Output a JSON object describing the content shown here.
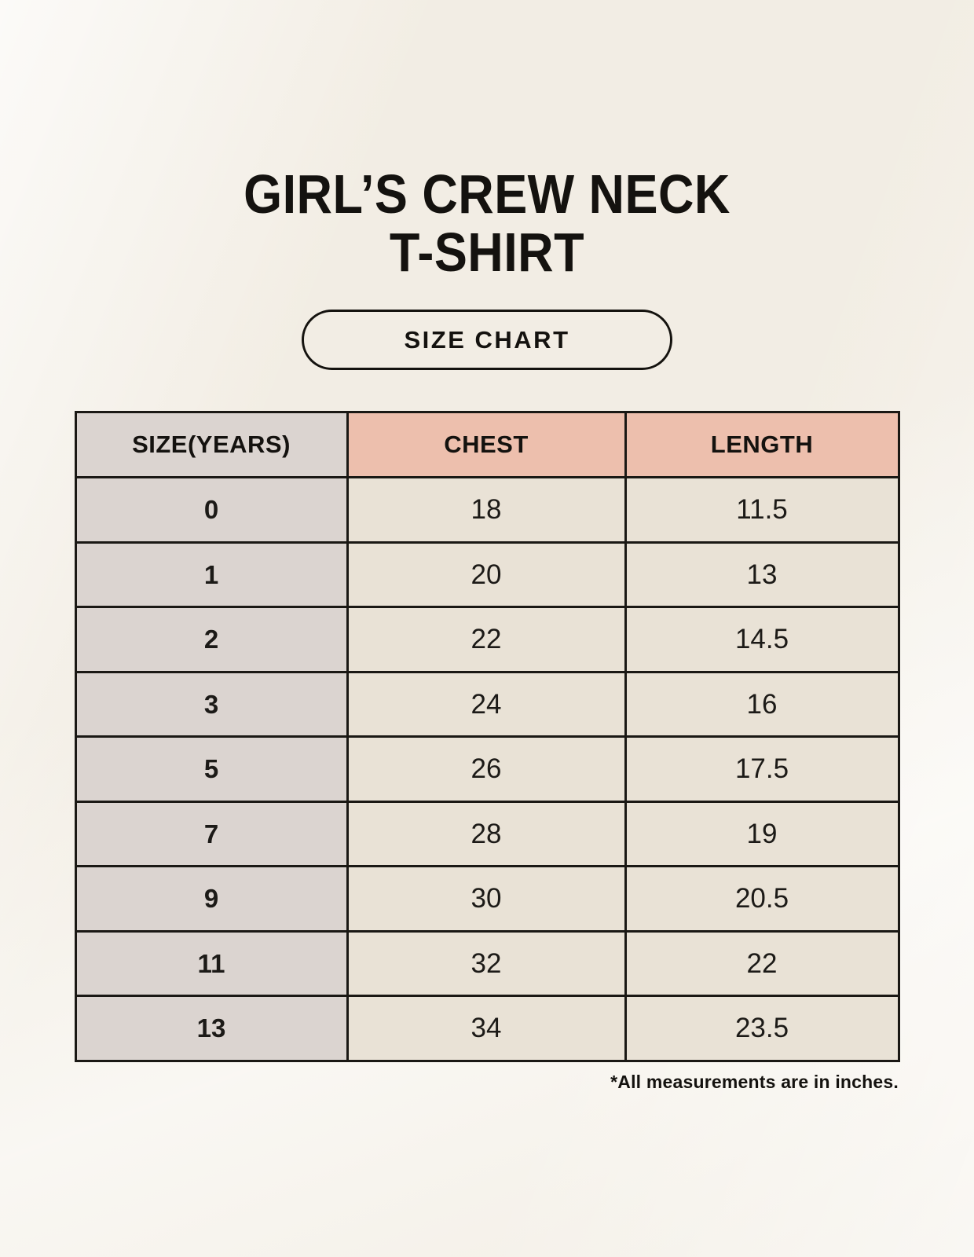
{
  "header": {
    "title_line1": "GIRL’S CREW NECK",
    "title_line2": "T-SHIRT",
    "badge_label": "SIZE CHART"
  },
  "footnote": "*All measurements are in inches.",
  "colors": {
    "page_background": "#f5f1e9",
    "header_size_bg": "#dbd4d0",
    "header_measurement_bg": "#edbfad",
    "size_column_bg": "#dbd4d0",
    "value_cell_bg": "#e9e2d6",
    "table_border": "#1a1814",
    "text": "#1c1a17"
  },
  "chart_data": {
    "type": "table",
    "title": "GIRL’S CREW NECK T-SHIRT — SIZE CHART",
    "columns": [
      "SIZE(YEARS)",
      "CHEST",
      "LENGTH"
    ],
    "rows": [
      [
        "0",
        "18",
        "11.5"
      ],
      [
        "1",
        "20",
        "13"
      ],
      [
        "2",
        "22",
        "14.5"
      ],
      [
        "3",
        "24",
        "16"
      ],
      [
        "5",
        "26",
        "17.5"
      ],
      [
        "7",
        "28",
        "19"
      ],
      [
        "9",
        "30",
        "20.5"
      ],
      [
        "11",
        "32",
        "22"
      ],
      [
        "13",
        "34",
        "23.5"
      ]
    ],
    "units_note": "*All measurements are in inches."
  }
}
